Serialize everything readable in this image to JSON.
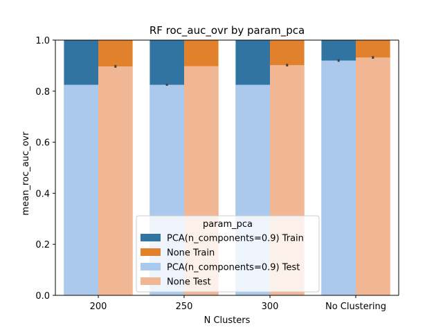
{
  "chart_data": {
    "type": "bar",
    "title": "RF roc_auc_ovr by param_pca",
    "xlabel": "N Clusters",
    "ylabel": "mean_roc_auc_ovr",
    "categories": [
      "200",
      "250",
      "300",
      "No Clustering"
    ],
    "ylim": [
      0,
      1.0
    ],
    "yticks": [
      0.0,
      0.2,
      0.4,
      0.6,
      0.8,
      1.0
    ],
    "ytick_labels": [
      "0.0",
      "0.2",
      "0.4",
      "0.6",
      "0.8",
      "1.0"
    ],
    "grid": false,
    "legend": {
      "title": "param_pca",
      "placement": "lower-center",
      "entries": [
        "PCA(n_components=0.9) Train",
        "None Train",
        "PCA(n_components=0.9) Test",
        "None Test"
      ]
    },
    "series": [
      {
        "name": "PCA(n_components=0.9) Train",
        "group": "PCA(n_components=0.9)",
        "role": "train",
        "color": "#3274a1",
        "values": [
          1.0,
          1.0,
          1.0,
          1.0
        ],
        "error": [
          0,
          0,
          0,
          0
        ]
      },
      {
        "name": "None Train",
        "group": "None",
        "role": "train",
        "color": "#e1812c",
        "values": [
          1.0,
          1.0,
          1.0,
          1.0
        ],
        "error": [
          0,
          0,
          0,
          0
        ]
      },
      {
        "name": "PCA(n_components=0.9) Test",
        "group": "PCA(n_components=0.9)",
        "role": "test",
        "color": "#abc9ed",
        "values": [
          0.825,
          0.825,
          0.825,
          0.92
        ],
        "error": [
          0,
          0.004,
          0,
          0.005
        ]
      },
      {
        "name": "None Test",
        "group": "None",
        "role": "test",
        "color": "#f1b794",
        "values": [
          0.897,
          0.898,
          0.902,
          0.932
        ],
        "error": [
          0.005,
          0,
          0.005,
          0.005
        ]
      }
    ]
  }
}
